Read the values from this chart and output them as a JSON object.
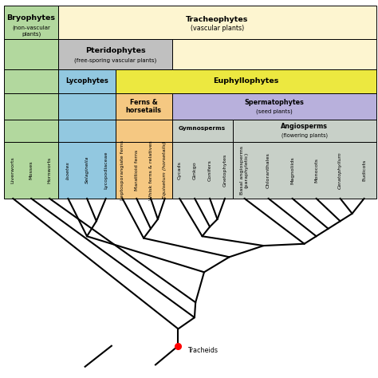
{
  "colors": {
    "bryophytes": "#b2d89e",
    "tracheophytes": "#fdf5d0",
    "pteridophytes": "#c0c0c0",
    "lycophytes": "#92c8e0",
    "ferns_horsetails": "#f5c882",
    "euphyllophytes": "#ece840",
    "spermatophytes": "#b8b0dc",
    "gymnosperms": "#c8d0c8",
    "angiosperms": "#c8d0c8",
    "border": "#000000"
  },
  "leaf_names": [
    [
      "Liverworts",
      false
    ],
    [
      "Mosses",
      false
    ],
    [
      "Hornworts",
      false
    ],
    [
      "Isoetes",
      true
    ],
    [
      "Selaginella",
      true
    ],
    [
      "Lycopodiaceae",
      false
    ],
    [
      "Leptosporangiate ferns",
      false
    ],
    [
      "Marattioid ferns",
      false
    ],
    [
      "Whisk ferns & relatives",
      false
    ],
    [
      "Equisetum (horsetails)",
      true
    ],
    [
      "Cycads",
      false
    ],
    [
      "Ginkgo",
      false
    ],
    [
      "Conifers",
      false
    ],
    [
      "Gnetophytes",
      false
    ],
    [
      "Basal angiosperms\n(paraphyletic)",
      false
    ],
    [
      "Chloranthales",
      false
    ],
    [
      "Magnoliids",
      false
    ],
    [
      "Monocots",
      false
    ],
    [
      "Ceratophyllum",
      true
    ],
    [
      "Eudicots",
      false
    ]
  ],
  "col_widths": [
    1,
    1,
    1,
    1,
    1,
    1,
    1,
    1,
    1,
    1,
    1,
    1,
    1,
    1,
    1,
    1,
    1,
    1,
    1,
    1
  ],
  "fig_width": 4.74,
  "fig_height": 4.74,
  "dpi": 100
}
